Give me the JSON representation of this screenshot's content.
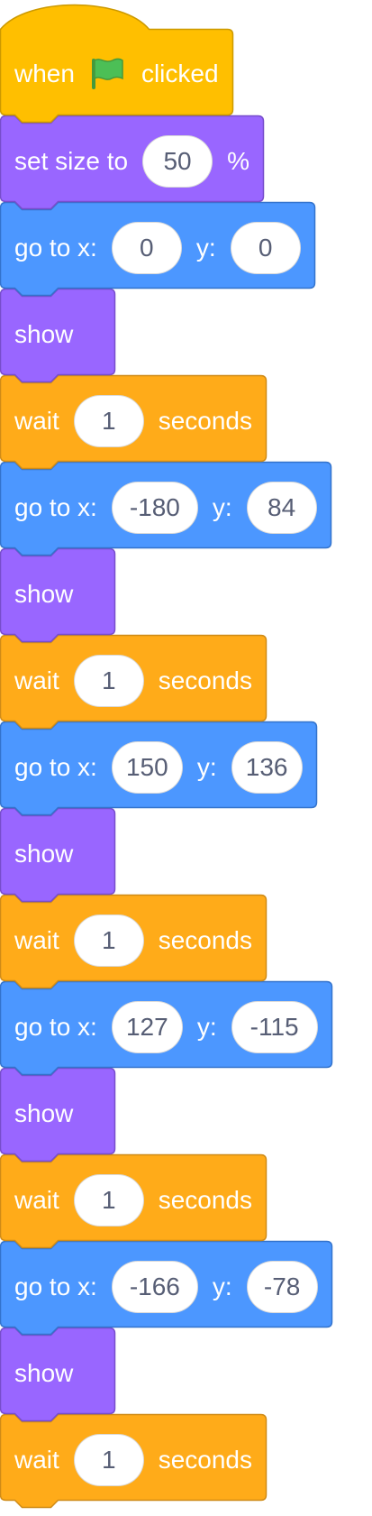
{
  "colors": {
    "events": "#ffbf00",
    "events_border": "#cc9900",
    "looks": "#9966ff",
    "looks_border": "#774dcb",
    "motion": "#4c97ff",
    "motion_border": "#3373cc",
    "control": "#ffab19",
    "control_border": "#cf8b17",
    "flag": "#4cbf56",
    "input_text": "#575e75"
  },
  "blocks": [
    {
      "category": "events",
      "parts": [
        {
          "text": "when"
        },
        {
          "icon": "green-flag-icon"
        },
        {
          "text": "clicked"
        }
      ]
    },
    {
      "category": "looks",
      "parts": [
        {
          "text": "set size to"
        },
        {
          "input": "50"
        },
        {
          "text": "%"
        }
      ]
    },
    {
      "category": "motion",
      "parts": [
        {
          "text": "go to x:"
        },
        {
          "input": "0"
        },
        {
          "text": "y:"
        },
        {
          "input": "0"
        }
      ]
    },
    {
      "category": "looks",
      "parts": [
        {
          "text": "show"
        }
      ]
    },
    {
      "category": "control",
      "parts": [
        {
          "text": "wait"
        },
        {
          "input": "1"
        },
        {
          "text": "seconds"
        }
      ]
    },
    {
      "category": "motion",
      "parts": [
        {
          "text": "go to x:"
        },
        {
          "input": "-180"
        },
        {
          "text": "y:"
        },
        {
          "input": "84"
        }
      ]
    },
    {
      "category": "looks",
      "parts": [
        {
          "text": "show"
        }
      ]
    },
    {
      "category": "control",
      "parts": [
        {
          "text": "wait"
        },
        {
          "input": "1"
        },
        {
          "text": "seconds"
        }
      ]
    },
    {
      "category": "motion",
      "parts": [
        {
          "text": "go to x:"
        },
        {
          "input": "150"
        },
        {
          "text": "y:"
        },
        {
          "input": "136"
        }
      ]
    },
    {
      "category": "looks",
      "parts": [
        {
          "text": "show"
        }
      ]
    },
    {
      "category": "control",
      "parts": [
        {
          "text": "wait"
        },
        {
          "input": "1"
        },
        {
          "text": "seconds"
        }
      ]
    },
    {
      "category": "motion",
      "parts": [
        {
          "text": "go to x:"
        },
        {
          "input": "127"
        },
        {
          "text": "y:"
        },
        {
          "input": "-115"
        }
      ]
    },
    {
      "category": "looks",
      "parts": [
        {
          "text": "show"
        }
      ]
    },
    {
      "category": "control",
      "parts": [
        {
          "text": "wait"
        },
        {
          "input": "1"
        },
        {
          "text": "seconds"
        }
      ]
    },
    {
      "category": "motion",
      "parts": [
        {
          "text": "go to x:"
        },
        {
          "input": "-166"
        },
        {
          "text": "y:"
        },
        {
          "input": "-78"
        }
      ]
    },
    {
      "category": "looks",
      "parts": [
        {
          "text": "show"
        }
      ]
    },
    {
      "category": "control",
      "parts": [
        {
          "text": "wait"
        },
        {
          "input": "1"
        },
        {
          "text": "seconds"
        }
      ]
    }
  ]
}
